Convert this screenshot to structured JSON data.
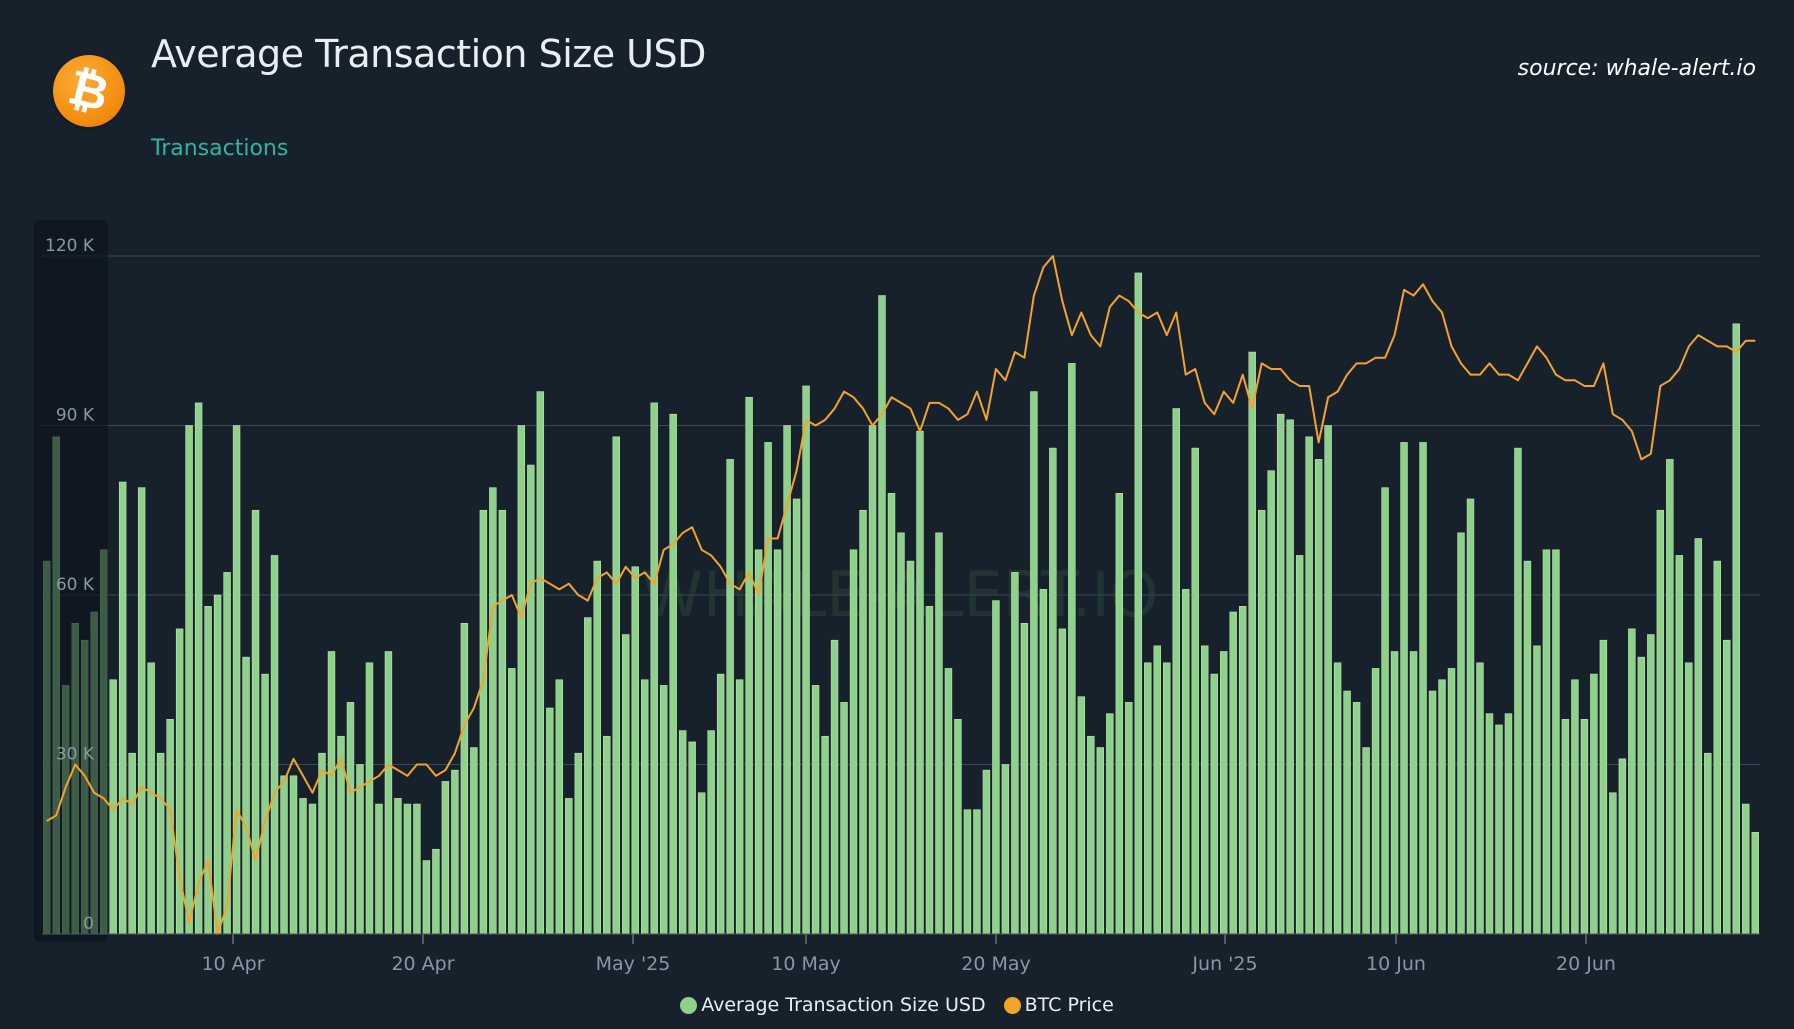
{
  "header": {
    "title": "Average Transaction Size USD",
    "subtitle": "Transactions",
    "source": "source: whale-alert.io",
    "logo_icon": "bitcoin-icon",
    "logo_text": "₿"
  },
  "watermark": "WHALE-ALERT.IO",
  "colors": {
    "background": "#17212c",
    "bar": "#8fd18a",
    "bar_edge": "#b8e6b2",
    "line": "#f2a42a",
    "grid": "#3a4754",
    "axis_text": "#8a97a3"
  },
  "legend": [
    {
      "label": "Average Transaction Size USD",
      "color": "#8fd18a"
    },
    {
      "label": "BTC Price",
      "color": "#f2a42a"
    }
  ],
  "chart_data": {
    "type": "bar",
    "title": "Average Transaction Size USD",
    "xlabel": "",
    "ylabel": "",
    "ylim": [
      0,
      120000
    ],
    "y_ticks": [
      "0",
      "30 K",
      "60 K",
      "90 K",
      "120 K"
    ],
    "x_ticks": [
      "10 Apr",
      "20 Apr",
      "May '25",
      "10 May",
      "20 May",
      "Jun '25",
      "10 Jun",
      "20 Jun"
    ],
    "grid": true,
    "legend_position": "bottom-center",
    "range_selector_visible": true,
    "series": [
      {
        "name": "Average Transaction Size USD",
        "type": "bar",
        "values": [
          66000,
          88000,
          44000,
          55000,
          52000,
          57000,
          68000,
          45000,
          80000,
          32000,
          79000,
          48000,
          32000,
          38000,
          54000,
          90000,
          94000,
          58000,
          60000,
          64000,
          90000,
          49000,
          75000,
          46000,
          67000,
          28000,
          28000,
          24000,
          23000,
          32000,
          50000,
          35000,
          41000,
          30000,
          48000,
          23000,
          50000,
          24000,
          23000,
          23000,
          13000,
          15000,
          27000,
          29000,
          55000,
          33000,
          75000,
          79000,
          75000,
          47000,
          90000,
          83000,
          96000,
          40000,
          45000,
          24000,
          32000,
          56000,
          66000,
          35000,
          88000,
          53000,
          65000,
          45000,
          94000,
          44000,
          92000,
          36000,
          34000,
          25000,
          36000,
          46000,
          84000,
          45000,
          95000,
          68000,
          87000,
          68000,
          90000,
          77000,
          97000,
          44000,
          35000,
          52000,
          41000,
          68000,
          75000,
          90000,
          113000,
          78000,
          71000,
          66000,
          89000,
          58000,
          71000,
          47000,
          38000,
          22000,
          22000,
          29000,
          59000,
          30000,
          64000,
          55000,
          96000,
          61000,
          86000,
          54000,
          101000,
          42000,
          35000,
          33000,
          39000,
          78000,
          41000,
          117000,
          48000,
          51000,
          48000,
          93000,
          61000,
          86000,
          51000,
          46000,
          50000,
          57000,
          58000,
          103000,
          75000,
          82000,
          92000,
          91000,
          67000,
          88000,
          84000,
          90000,
          48000,
          43000,
          41000,
          33000,
          47000,
          79000,
          50000,
          87000,
          50000,
          87000,
          43000,
          45000,
          47000,
          71000,
          77000,
          48000,
          39000,
          37000,
          39000,
          86000,
          66000,
          51000,
          68000,
          68000,
          38000,
          45000,
          38000,
          46000,
          52000,
          25000,
          31000,
          54000,
          49000,
          53000,
          75000,
          84000,
          67000,
          48000,
          70000,
          32000,
          66000,
          52000,
          108000,
          23000,
          18000
        ]
      },
      {
        "name": "BTC Price",
        "type": "line",
        "values": [
          20000,
          21000,
          26000,
          30000,
          28000,
          25000,
          24000,
          22000,
          24000,
          23000,
          26000,
          25000,
          24000,
          22000,
          10000,
          2000,
          9000,
          13000,
          0,
          5000,
          22000,
          19000,
          13000,
          20000,
          25000,
          27000,
          31000,
          28000,
          25000,
          29000,
          28000,
          31000,
          25000,
          26000,
          27000,
          28000,
          30000,
          29000,
          28000,
          30000,
          30000,
          28000,
          29000,
          32000,
          37000,
          40000,
          45000,
          58000,
          59000,
          60000,
          56000,
          62000,
          63000,
          62000,
          61000,
          62000,
          60000,
          59000,
          63000,
          64000,
          62000,
          65000,
          63000,
          64000,
          62000,
          68000,
          69000,
          71000,
          72000,
          68000,
          67000,
          65000,
          62000,
          61000,
          64000,
          60000,
          70000,
          70000,
          76000,
          82000,
          91000,
          90000,
          91000,
          93000,
          96000,
          95000,
          93000,
          90000,
          92000,
          95000,
          94000,
          93000,
          89000,
          94000,
          94000,
          93000,
          91000,
          92000,
          96000,
          91000,
          100000,
          98000,
          103000,
          102000,
          113000,
          118000,
          120000,
          112000,
          106000,
          110000,
          106000,
          104000,
          111000,
          113000,
          112000,
          110000,
          109000,
          110000,
          106000,
          110000,
          99000,
          100000,
          94000,
          92000,
          96000,
          94000,
          99000,
          93000,
          101000,
          100000,
          100000,
          98000,
          97000,
          97000,
          87000,
          95000,
          96000,
          99000,
          101000,
          101000,
          102000,
          102000,
          106000,
          114000,
          113000,
          115000,
          112000,
          110000,
          104000,
          101000,
          99000,
          99000,
          101000,
          99000,
          99000,
          98000,
          101000,
          104000,
          102000,
          99000,
          98000,
          98000,
          97000,
          97000,
          101000,
          92000,
          91000,
          89000,
          84000,
          85000,
          97000,
          98000,
          100000,
          104000,
          106000,
          105000,
          104000,
          104000,
          103000,
          105000,
          105000
        ]
      }
    ]
  }
}
